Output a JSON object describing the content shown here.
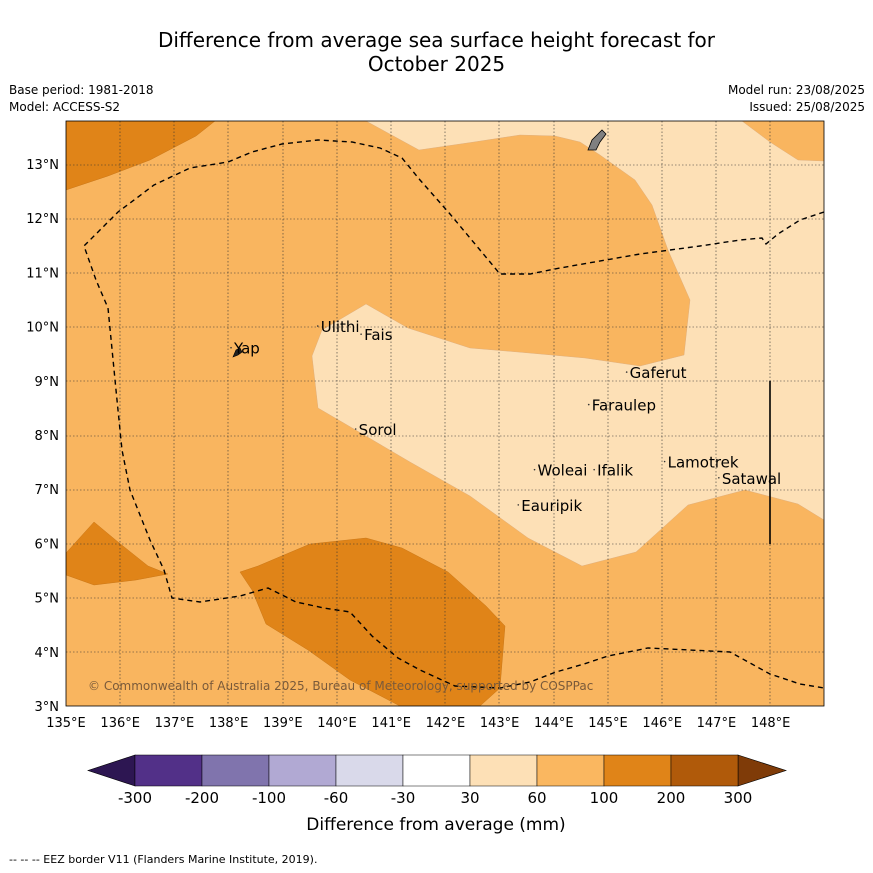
{
  "title_line1": "Difference from average sea surface height forecast for",
  "title_line2": "October 2025",
  "base_period": "Base period: 1981-2018",
  "model": "Model: ACCESS-S2",
  "model_run": "Model run: 23/08/2025",
  "issued": "Issued: 25/08/2025",
  "copyright": "© Commonwealth of Australia 2025, Bureau of Meteorology, supported by COSPPac",
  "footer_legend": "--  --  -- EEZ border V11 (Flanders Marine Institute, 2019).",
  "lon_labels": [
    "135°E",
    "136°E",
    "137°E",
    "138°E",
    "139°E",
    "140°E",
    "141°E",
    "142°E",
    "143°E",
    "144°E",
    "145°E",
    "146°E",
    "147°E",
    "148°E"
  ],
  "lat_labels": [
    "3°N",
    "4°N",
    "5°N",
    "6°N",
    "7°N",
    "8°N",
    "9°N",
    "10°N",
    "11°N",
    "12°N",
    "13°N"
  ],
  "places": [
    {
      "name": "Yap",
      "lon": 138.1,
      "lat": 9.5
    },
    {
      "name": "Ulithi",
      "lon": 139.7,
      "lat": 9.9
    },
    {
      "name": "Fais",
      "lon": 140.5,
      "lat": 9.75
    },
    {
      "name": "Gaferut",
      "lon": 145.4,
      "lat": 9.05
    },
    {
      "name": "Faraulep",
      "lon": 144.7,
      "lat": 8.45
    },
    {
      "name": "Sorol",
      "lon": 140.4,
      "lat": 8.0
    },
    {
      "name": "Lamotrek",
      "lon": 146.1,
      "lat": 7.4
    },
    {
      "name": "Woleai",
      "lon": 143.7,
      "lat": 7.25
    },
    {
      "name": "Ifalik",
      "lon": 144.8,
      "lat": 7.25
    },
    {
      "name": "Satawal",
      "lon": 147.1,
      "lat": 7.1
    },
    {
      "name": "Eauripik",
      "lon": 143.4,
      "lat": 6.6
    }
  ],
  "colorbar": {
    "title": "Difference from average (mm)",
    "tick_labels": [
      "-300",
      "-200",
      "-100",
      "-60",
      "-30",
      "30",
      "60",
      "100",
      "200",
      "300"
    ],
    "colors": [
      "#523088",
      "#8074ad",
      "#b1a9d3",
      "#d9d9ea",
      "#ffffff",
      "#fde0b6",
      "#fab760",
      "#e08418",
      "#b05a0a"
    ],
    "under_color": "#2d1652",
    "over_color": "#7f3b08"
  },
  "map_colors": {
    "lightest": "#fde0b6",
    "light": "#f9b55f",
    "medium": "#e08418"
  }
}
